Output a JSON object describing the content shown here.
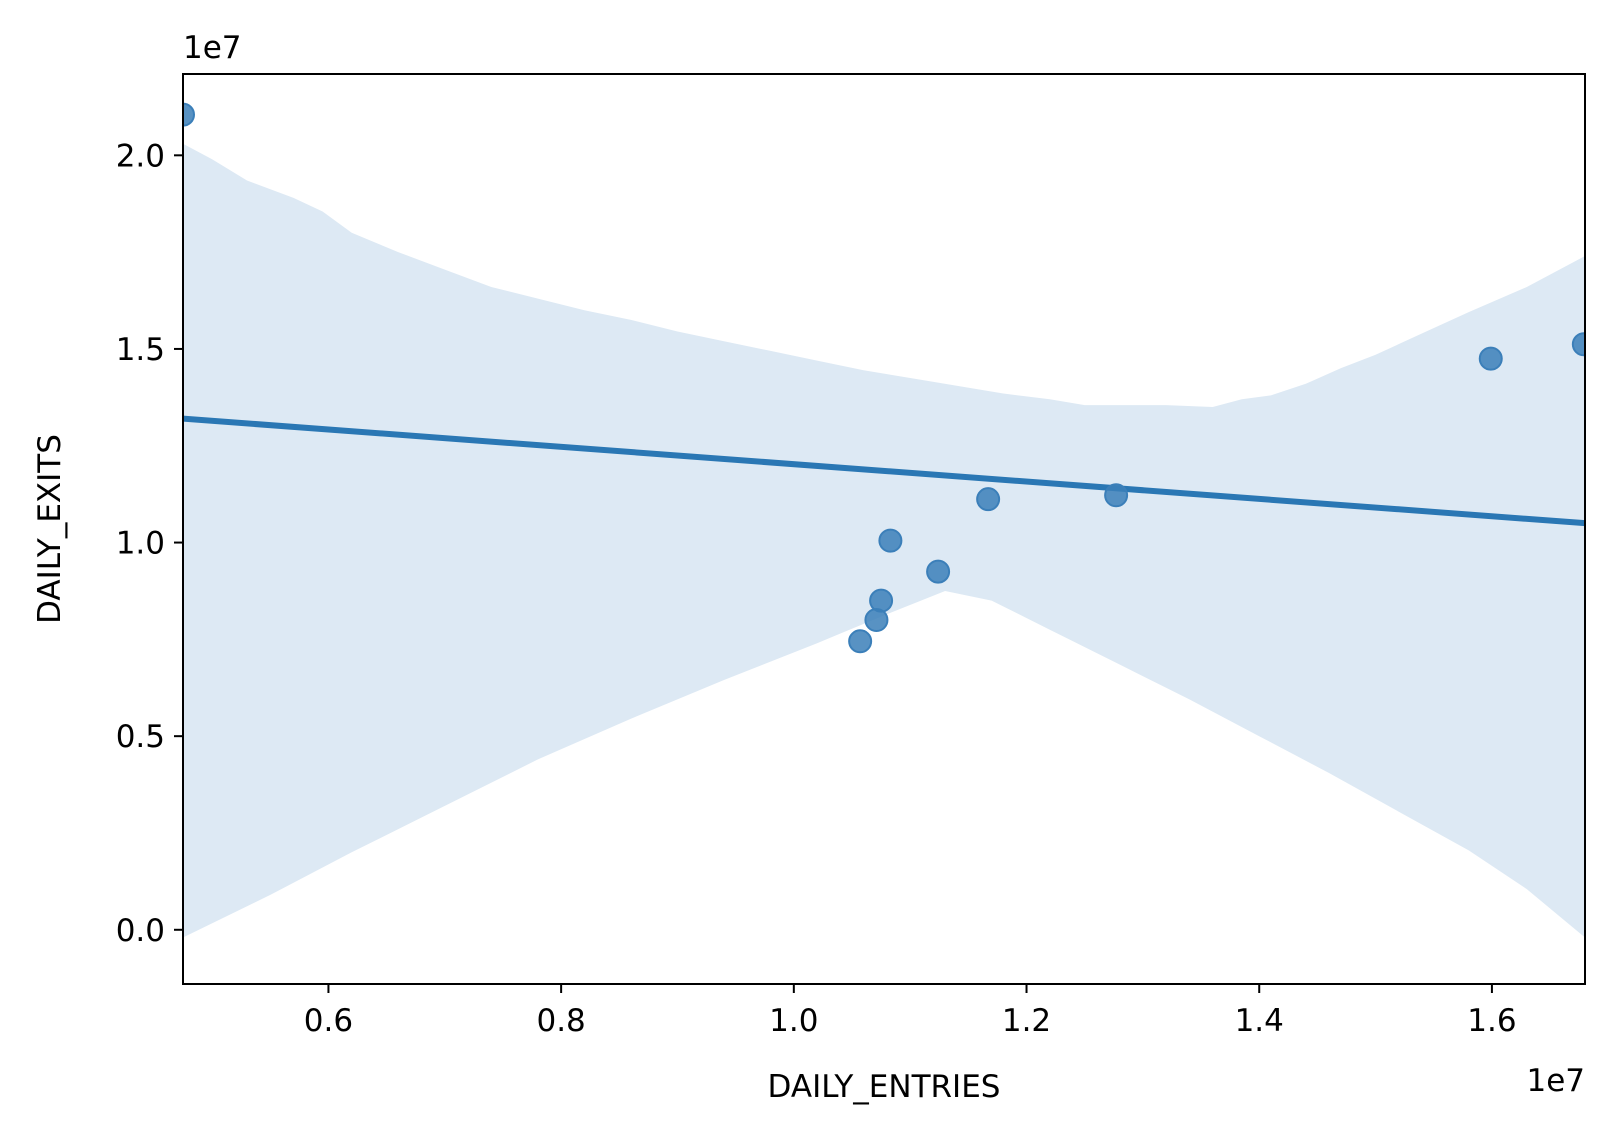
{
  "chart_data": {
    "type": "scatter",
    "title": "",
    "xlabel": "DAILY_ENTRIES",
    "ylabel": "DAILY_EXITS",
    "x_offset_label": "1e7",
    "y_offset_label": "1e7",
    "xlim": [
      4.75,
      16.8
    ],
    "ylim": [
      -1.4,
      22.1
    ],
    "x_ticks": [
      {
        "value": 6,
        "label": "0.6"
      },
      {
        "value": 8,
        "label": "0.8"
      },
      {
        "value": 10,
        "label": "1.0"
      },
      {
        "value": 12,
        "label": "1.2"
      },
      {
        "value": 14,
        "label": "1.4"
      },
      {
        "value": 16,
        "label": "1.6"
      }
    ],
    "y_ticks": [
      {
        "value": 0,
        "label": "0.0"
      },
      {
        "value": 5,
        "label": "0.5"
      },
      {
        "value": 10,
        "label": "1.0"
      },
      {
        "value": 15,
        "label": "1.5"
      },
      {
        "value": 20,
        "label": "2.0"
      }
    ],
    "grid": false,
    "colors": {
      "points": "#3b7fb9",
      "line": "#2a77b4",
      "band": "#dde9f4"
    },
    "points": [
      {
        "x": 4.75,
        "y": 21.05
      },
      {
        "x": 10.57,
        "y": 7.45
      },
      {
        "x": 10.71,
        "y": 8.0
      },
      {
        "x": 10.75,
        "y": 8.5
      },
      {
        "x": 10.83,
        "y": 10.05
      },
      {
        "x": 11.24,
        "y": 9.25
      },
      {
        "x": 11.67,
        "y": 11.12
      },
      {
        "x": 12.77,
        "y": 11.22
      },
      {
        "x": 15.99,
        "y": 14.75
      },
      {
        "x": 16.79,
        "y": 15.12
      }
    ],
    "regression_line": {
      "x": [
        4.75,
        16.8
      ],
      "y": [
        13.2,
        10.5
      ]
    },
    "ci_band": {
      "upper": [
        [
          4.75,
          20.3
        ],
        [
          5.0,
          19.9
        ],
        [
          5.3,
          19.35
        ],
        [
          5.7,
          18.9
        ],
        [
          5.95,
          18.55
        ],
        [
          6.2,
          18.0
        ],
        [
          6.6,
          17.5
        ],
        [
          7.0,
          17.05
        ],
        [
          7.4,
          16.6
        ],
        [
          7.8,
          16.3
        ],
        [
          8.2,
          16.0
        ],
        [
          8.6,
          15.75
        ],
        [
          9.0,
          15.45
        ],
        [
          9.4,
          15.2
        ],
        [
          9.8,
          14.95
        ],
        [
          10.2,
          14.7
        ],
        [
          10.6,
          14.45
        ],
        [
          11.0,
          14.25
        ],
        [
          11.4,
          14.05
        ],
        [
          11.8,
          13.85
        ],
        [
          12.2,
          13.7
        ],
        [
          12.5,
          13.55
        ],
        [
          12.9,
          13.55
        ],
        [
          13.2,
          13.55
        ],
        [
          13.6,
          13.5
        ],
        [
          13.85,
          13.7
        ],
        [
          14.1,
          13.8
        ],
        [
          14.4,
          14.1
        ],
        [
          14.7,
          14.5
        ],
        [
          15.0,
          14.85
        ],
        [
          15.4,
          15.4
        ],
        [
          15.8,
          15.95
        ],
        [
          16.3,
          16.6
        ],
        [
          16.8,
          17.4
        ]
      ],
      "lower": [
        [
          4.75,
          -0.2
        ],
        [
          5.5,
          0.9
        ],
        [
          6.2,
          2.0
        ],
        [
          7.0,
          3.2
        ],
        [
          7.8,
          4.4
        ],
        [
          8.6,
          5.45
        ],
        [
          9.4,
          6.45
        ],
        [
          10.2,
          7.4
        ],
        [
          10.8,
          8.15
        ],
        [
          11.3,
          8.75
        ],
        [
          11.7,
          8.5
        ],
        [
          12.2,
          7.75
        ],
        [
          12.8,
          6.85
        ],
        [
          13.4,
          5.95
        ],
        [
          14.0,
          5.0
        ],
        [
          14.6,
          4.05
        ],
        [
          15.2,
          3.05
        ],
        [
          15.8,
          2.05
        ],
        [
          16.3,
          1.05
        ],
        [
          16.8,
          -0.2
        ]
      ]
    }
  }
}
